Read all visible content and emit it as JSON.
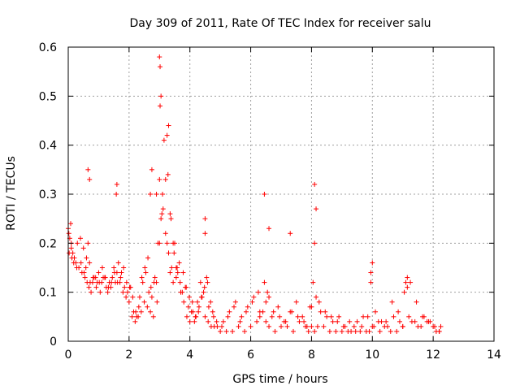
{
  "chart_data": {
    "type": "scatter",
    "title": "Day 309 of 2011, Rate Of TEC Index for receiver salu",
    "xlabel": "GPS time / hours",
    "ylabel": "ROTI / TECUs",
    "xlim": [
      0,
      14
    ],
    "ylim": [
      0,
      0.6
    ],
    "xticks": [
      "0",
      "2",
      "4",
      "6",
      "8",
      "10",
      "12",
      "14"
    ],
    "yticks": [
      "0",
      "0.1",
      "0.2",
      "0.3",
      "0.4",
      "0.5",
      "0.6"
    ],
    "grid": true,
    "marker": "plus",
    "color": "#ff0000",
    "series": [
      {
        "x": [
          0.0,
          0.05,
          0.1,
          0.15,
          0.2,
          0.3,
          0.4,
          0.5,
          0.6,
          0.65,
          0.7,
          0.8,
          0.9,
          1.0,
          1.1,
          1.2,
          1.3,
          1.4,
          1.5,
          1.6,
          1.7,
          1.8,
          1.9,
          2.0,
          2.1,
          2.2,
          2.3,
          2.4,
          2.5,
          2.6,
          2.7,
          2.8,
          2.9,
          3.0,
          3.05,
          3.1,
          3.2,
          3.3,
          3.4,
          3.5,
          3.6,
          3.7,
          3.8,
          3.9,
          4.0,
          4.1,
          4.2,
          4.3,
          4.4,
          4.5,
          4.6,
          4.7,
          4.8,
          5.0,
          5.2,
          5.4,
          5.6,
          5.8,
          6.0,
          6.2,
          6.3,
          6.4,
          6.5,
          6.6,
          6.8,
          7.0,
          7.2,
          7.4,
          7.6,
          7.8,
          7.9,
          8.0,
          8.1,
          8.2,
          8.4,
          8.6,
          8.8,
          9.0,
          9.2,
          9.4,
          9.6,
          9.8,
          10.0,
          10.2,
          10.4,
          10.6,
          10.8,
          11.0,
          11.2,
          11.4,
          11.6,
          11.8,
          12.0,
          12.2,
          0.02,
          0.08,
          0.12,
          0.25,
          0.35,
          0.45,
          0.55,
          0.62,
          0.68,
          0.75,
          0.85,
          0.95,
          1.05,
          1.15,
          1.25,
          1.35,
          1.45,
          1.55,
          1.58,
          1.65,
          1.75,
          1.85,
          1.95,
          2.05,
          2.15,
          2.25,
          2.35,
          2.45,
          2.55,
          2.65,
          2.75,
          2.85,
          2.95,
          3.0,
          3.02,
          3.08,
          3.12,
          3.25,
          3.35,
          3.45,
          3.55,
          3.65,
          3.75,
          3.85,
          3.95,
          4.05,
          4.15,
          4.25,
          4.35,
          4.45,
          4.55,
          4.62,
          4.75,
          4.9,
          5.1,
          5.3,
          5.5,
          5.7,
          5.9,
          6.1,
          6.3,
          6.5,
          6.55,
          6.7,
          6.9,
          7.1,
          7.3,
          7.5,
          7.7,
          7.85,
          8.0,
          8.05,
          8.15,
          8.3,
          8.5,
          8.7,
          8.9,
          9.1,
          9.3,
          9.5,
          9.7,
          9.9,
          9.95,
          10.1,
          10.3,
          10.5,
          10.7,
          10.9,
          11.05,
          11.15,
          11.3,
          11.5,
          11.7,
          11.9,
          12.1,
          12.25,
          0.03,
          0.1,
          0.18,
          0.28,
          0.42,
          0.52,
          0.58,
          0.72,
          0.82,
          0.92,
          1.02,
          1.12,
          1.22,
          1.32,
          1.42,
          1.52,
          1.62,
          1.72,
          1.82,
          1.92,
          2.02,
          2.12,
          2.22,
          2.32,
          2.42,
          2.52,
          2.62,
          2.72,
          2.82,
          2.92,
          3.15,
          3.28,
          3.38,
          3.48,
          3.58,
          3.68,
          3.78,
          3.88,
          3.98,
          4.08,
          4.18,
          4.28,
          4.38,
          4.48,
          4.58,
          4.68,
          4.78,
          4.88,
          5.05,
          5.25,
          5.45,
          5.65,
          5.85,
          6.05,
          6.25,
          6.45,
          6.6,
          6.75,
          6.95,
          7.15,
          7.35,
          7.55,
          7.75,
          7.95,
          8.1,
          8.25,
          8.45,
          8.65,
          8.85,
          9.05,
          9.25,
          9.45,
          9.65,
          9.85,
          10.05,
          10.25,
          10.45,
          10.65,
          10.85,
          11.0,
          11.25,
          11.45,
          11.65,
          11.85,
          12.05,
          12.2,
          3.0,
          3.02,
          3.05,
          3.3,
          3.25,
          2.7,
          2.75,
          1.6,
          0.65,
          0.7,
          6.6,
          6.45,
          7.3,
          8.1,
          8.15,
          9.95,
          10.0,
          11.1,
          11.15,
          4.5,
          4.5,
          2.9,
          3.2,
          3.35,
          3.45,
          3.55
        ],
        "y": [
          0.23,
          0.21,
          0.19,
          0.18,
          0.17,
          0.2,
          0.21,
          0.19,
          0.17,
          0.2,
          0.16,
          0.12,
          0.13,
          0.14,
          0.12,
          0.13,
          0.1,
          0.11,
          0.15,
          0.14,
          0.12,
          0.1,
          0.09,
          0.08,
          0.05,
          0.04,
          0.05,
          0.06,
          0.08,
          0.07,
          0.06,
          0.05,
          0.12,
          0.2,
          0.25,
          0.3,
          0.22,
          0.18,
          0.15,
          0.2,
          0.14,
          0.1,
          0.08,
          0.05,
          0.04,
          0.06,
          0.05,
          0.07,
          0.09,
          0.05,
          0.04,
          0.03,
          0.03,
          0.02,
          0.02,
          0.02,
          0.03,
          0.02,
          0.03,
          0.04,
          0.05,
          0.06,
          0.04,
          0.03,
          0.02,
          0.03,
          0.03,
          0.02,
          0.04,
          0.03,
          0.02,
          0.03,
          0.02,
          0.03,
          0.03,
          0.02,
          0.02,
          0.02,
          0.02,
          0.03,
          0.02,
          0.02,
          0.03,
          0.04,
          0.03,
          0.02,
          0.02,
          0.03,
          0.05,
          0.04,
          0.03,
          0.04,
          0.03,
          0.02,
          0.22,
          0.24,
          0.17,
          0.16,
          0.15,
          0.14,
          0.13,
          0.12,
          0.11,
          0.1,
          0.13,
          0.12,
          0.1,
          0.13,
          0.11,
          0.12,
          0.13,
          0.12,
          0.3,
          0.16,
          0.14,
          0.11,
          0.1,
          0.11,
          0.06,
          0.05,
          0.09,
          0.12,
          0.14,
          0.1,
          0.09,
          0.13,
          0.2,
          0.33,
          0.48,
          0.26,
          0.27,
          0.2,
          0.14,
          0.12,
          0.13,
          0.16,
          0.1,
          0.11,
          0.07,
          0.06,
          0.04,
          0.08,
          0.12,
          0.1,
          0.13,
          0.07,
          0.06,
          0.03,
          0.04,
          0.06,
          0.08,
          0.05,
          0.07,
          0.09,
          0.06,
          0.08,
          0.1,
          0.05,
          0.07,
          0.04,
          0.06,
          0.08,
          0.05,
          0.03,
          0.07,
          0.12,
          0.09,
          0.06,
          0.05,
          0.04,
          0.05,
          0.03,
          0.02,
          0.04,
          0.05,
          0.02,
          0.12,
          0.06,
          0.04,
          0.03,
          0.05,
          0.04,
          0.1,
          0.11,
          0.04,
          0.03,
          0.05,
          0.04,
          0.02,
          0.03,
          0.18,
          0.2,
          0.16,
          0.15,
          0.16,
          0.14,
          0.15,
          0.12,
          0.13,
          0.11,
          0.12,
          0.15,
          0.13,
          0.11,
          0.12,
          0.14,
          0.12,
          0.13,
          0.15,
          0.12,
          0.11,
          0.09,
          0.06,
          0.07,
          0.13,
          0.15,
          0.17,
          0.11,
          0.12,
          0.08,
          0.41,
          0.34,
          0.25,
          0.18,
          0.15,
          0.12,
          0.14,
          0.11,
          0.09,
          0.08,
          0.05,
          0.06,
          0.09,
          0.11,
          0.12,
          0.08,
          0.05,
          0.04,
          0.03,
          0.05,
          0.07,
          0.04,
          0.06,
          0.08,
          0.1,
          0.12,
          0.09,
          0.06,
          0.05,
          0.04,
          0.06,
          0.05,
          0.04,
          0.07,
          0.2,
          0.08,
          0.06,
          0.05,
          0.04,
          0.03,
          0.04,
          0.02,
          0.03,
          0.05,
          0.03,
          0.02,
          0.04,
          0.08,
          0.06,
          0.03,
          0.12,
          0.08,
          0.05,
          0.04,
          0.03,
          0.02,
          0.58,
          0.56,
          0.5,
          0.44,
          0.42,
          0.3,
          0.35,
          0.32,
          0.35,
          0.33,
          0.23,
          0.3,
          0.22,
          0.32,
          0.27,
          0.14,
          0.16,
          0.12,
          0.13,
          0.25,
          0.22,
          0.3,
          0.33,
          0.26,
          0.2,
          0.15
        ]
      }
    ]
  }
}
